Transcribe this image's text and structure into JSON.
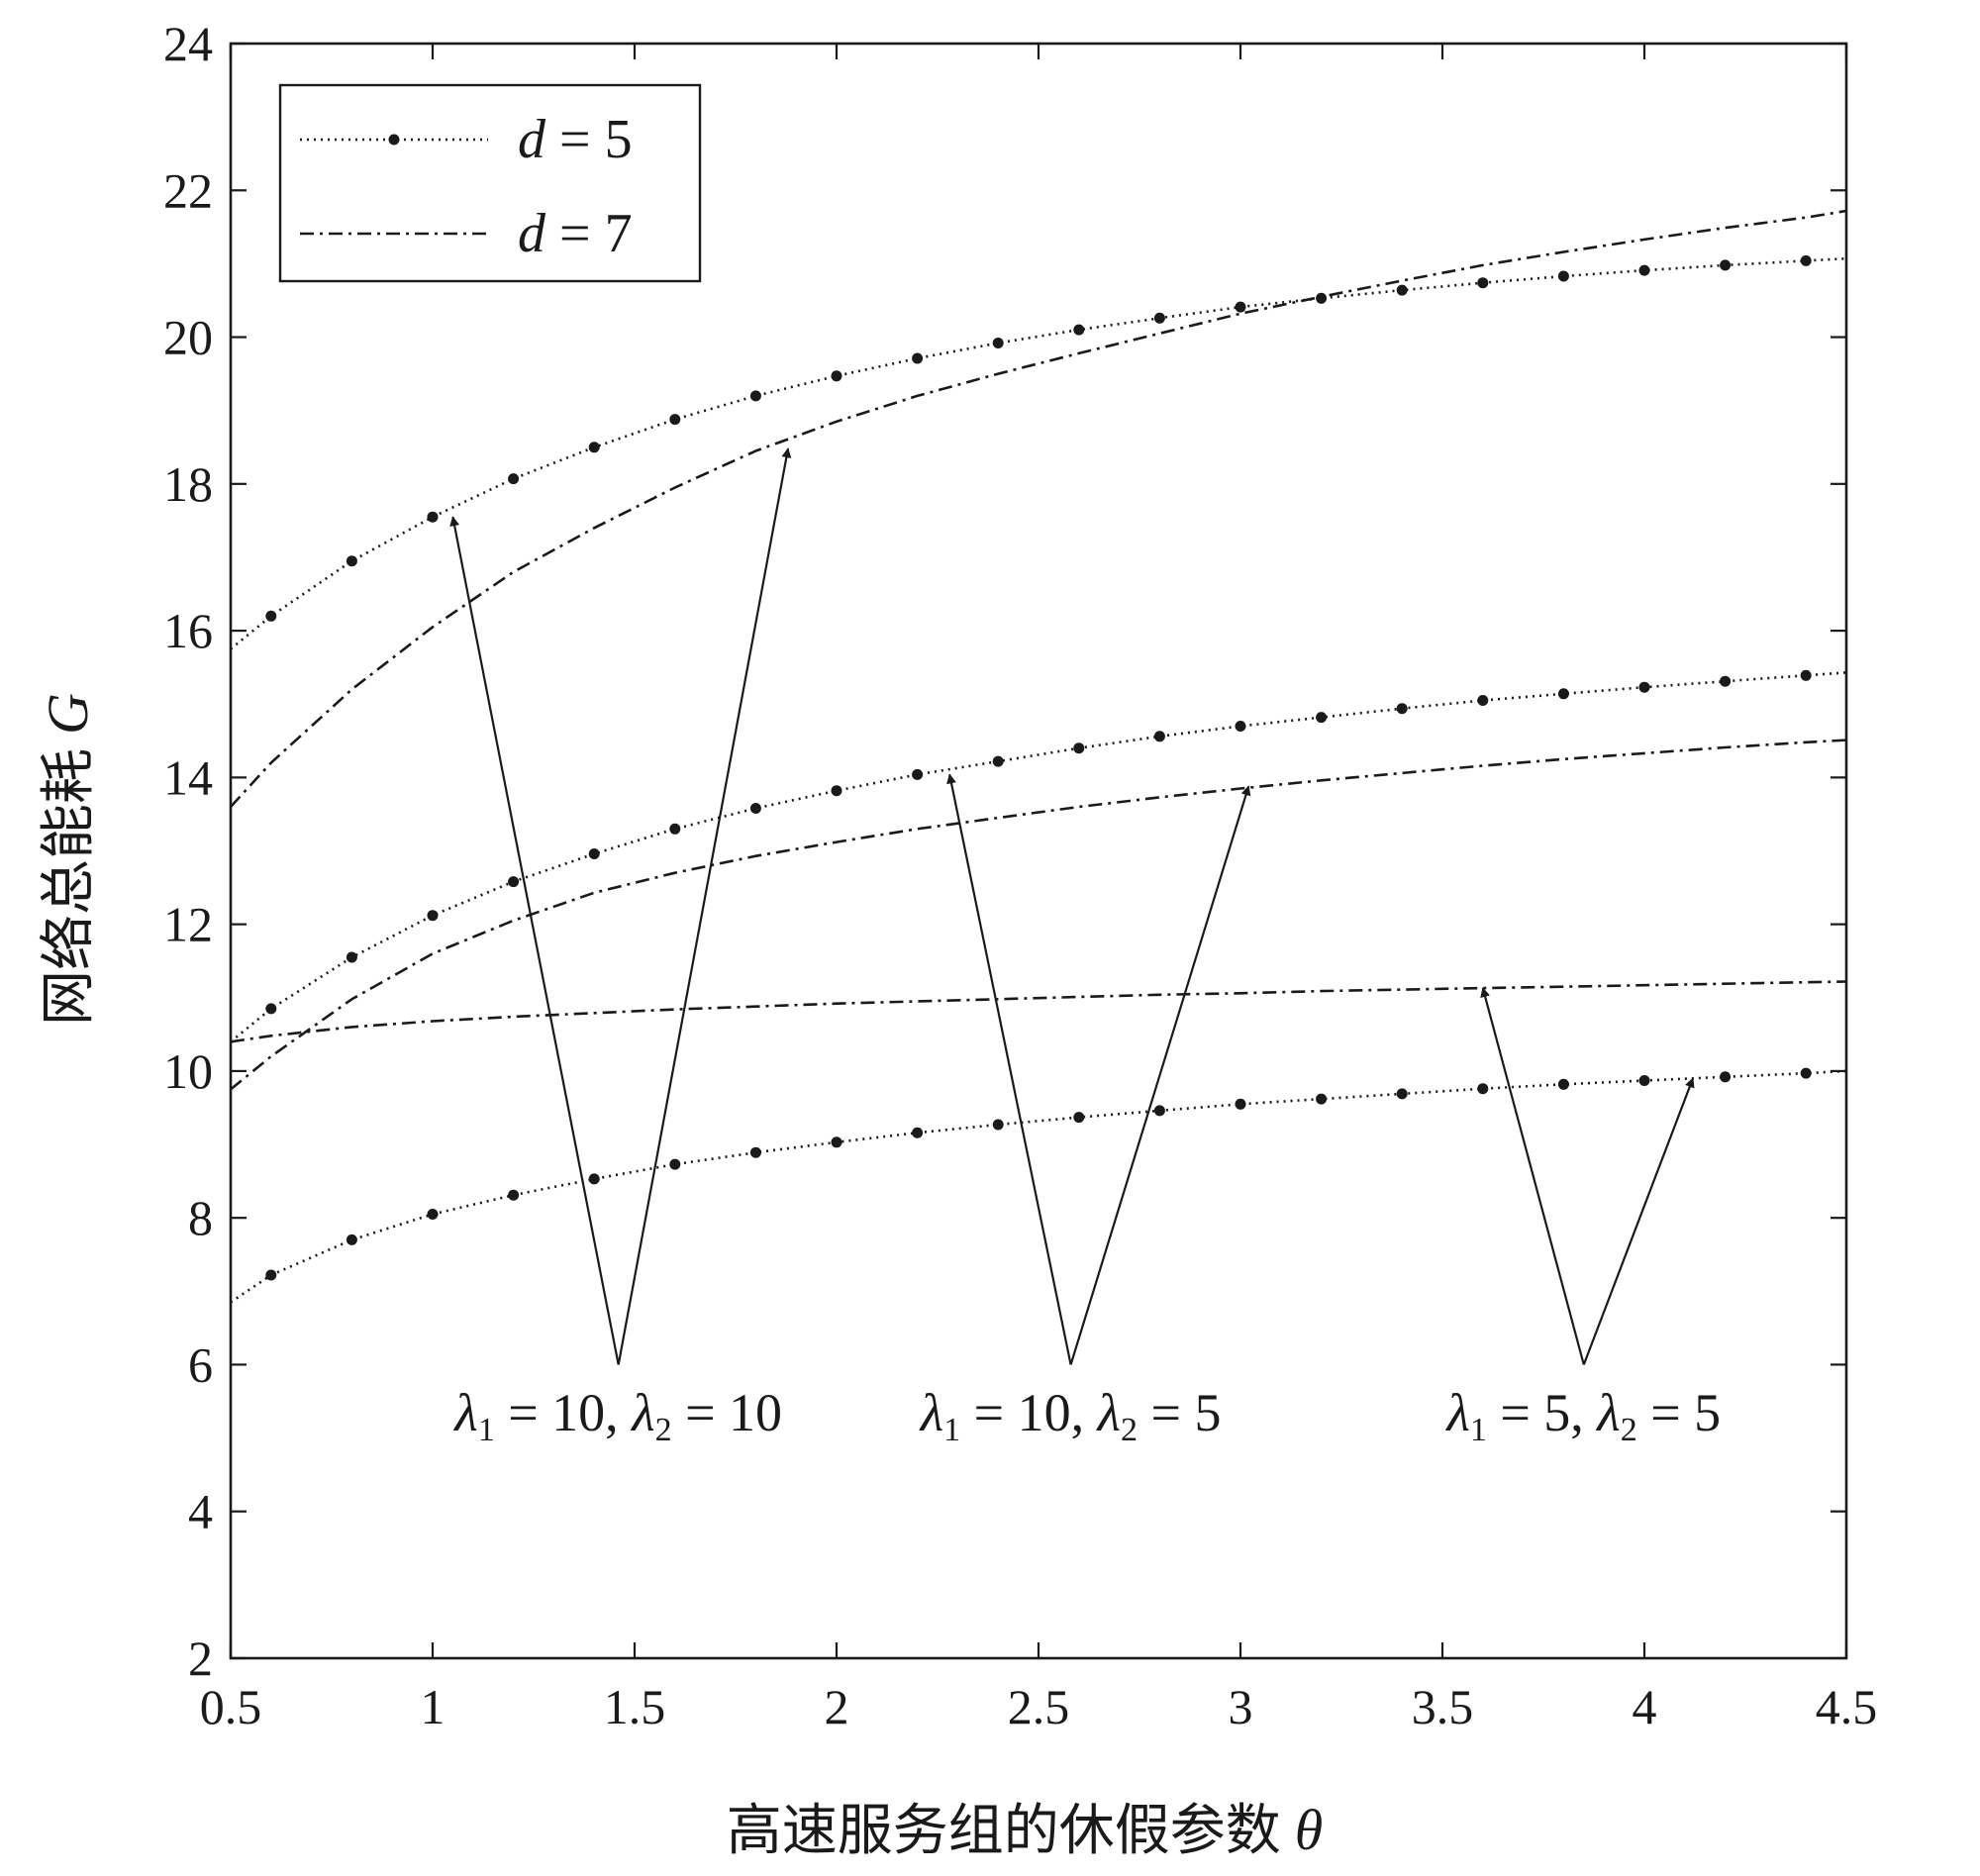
{
  "chart_data": {
    "type": "line",
    "xlabel": "高速服务组的休假参数",
    "xlabel_symbol": "θ",
    "ylabel": "网络总能耗",
    "ylabel_symbol": "G",
    "xlim": [
      0.5,
      4.5
    ],
    "ylim": [
      2,
      24
    ],
    "x_ticks": [
      "0.5",
      "1",
      "1.5",
      "2",
      "2.5",
      "3",
      "3.5",
      "4",
      "4.5"
    ],
    "y_ticks": [
      "2",
      "4",
      "6",
      "8",
      "10",
      "12",
      "14",
      "16",
      "18",
      "20",
      "22",
      "24"
    ],
    "grid": false,
    "legend_position": "top-left",
    "legend": [
      {
        "symbol": "d",
        "eq": " = ",
        "value": "5",
        "style": "dotted-marker"
      },
      {
        "symbol": "d",
        "eq": " = ",
        "value": "7",
        "style": "dash-dot"
      }
    ],
    "x": [
      0.5,
      0.6,
      0.8,
      1.0,
      1.2,
      1.4,
      1.6,
      1.8,
      2.0,
      2.2,
      2.4,
      2.6,
      2.8,
      3.0,
      3.2,
      3.4,
      3.6,
      3.8,
      4.0,
      4.2,
      4.4,
      4.5
    ],
    "series": [
      {
        "group": "λ1=10,λ2=10",
        "d": 5,
        "style": "dotted-marker",
        "values": [
          15.75,
          16.2,
          16.95,
          17.55,
          18.07,
          18.5,
          18.88,
          19.2,
          19.47,
          19.71,
          19.92,
          20.1,
          20.26,
          20.41,
          20.53,
          20.64,
          20.74,
          20.83,
          20.91,
          20.98,
          21.04,
          21.07
        ]
      },
      {
        "group": "λ1=10,λ2=10",
        "d": 7,
        "style": "dash-dot",
        "values": [
          13.6,
          14.2,
          15.2,
          16.05,
          16.8,
          17.4,
          17.95,
          18.45,
          18.85,
          19.2,
          19.5,
          19.78,
          20.05,
          20.32,
          20.55,
          20.77,
          20.98,
          21.16,
          21.33,
          21.49,
          21.63,
          21.72
        ]
      },
      {
        "group": "λ1=10,λ2=5",
        "d": 5,
        "style": "dotted-marker",
        "values": [
          10.4,
          10.85,
          11.55,
          12.12,
          12.58,
          12.96,
          13.3,
          13.58,
          13.82,
          14.04,
          14.22,
          14.4,
          14.56,
          14.7,
          14.82,
          14.94,
          15.05,
          15.14,
          15.23,
          15.31,
          15.39,
          15.43
        ]
      },
      {
        "group": "λ1=10,λ2=5",
        "d": 7,
        "style": "dash-dot",
        "values": [
          9.75,
          10.2,
          10.98,
          11.6,
          12.05,
          12.43,
          12.7,
          12.93,
          13.12,
          13.3,
          13.45,
          13.6,
          13.73,
          13.85,
          13.96,
          14.06,
          14.16,
          14.25,
          14.33,
          14.41,
          14.48,
          14.51
        ]
      },
      {
        "group": "λ1=5,λ2=5",
        "d": 5,
        "style": "dotted-marker",
        "values": [
          6.85,
          7.22,
          7.7,
          8.05,
          8.31,
          8.53,
          8.73,
          8.89,
          9.03,
          9.16,
          9.27,
          9.37,
          9.46,
          9.55,
          9.62,
          9.69,
          9.76,
          9.82,
          9.87,
          9.92,
          9.97,
          10.0
        ]
      },
      {
        "group": "λ1=5,λ2=5",
        "d": 7,
        "style": "dash-dot",
        "values": [
          10.4,
          10.48,
          10.6,
          10.68,
          10.74,
          10.79,
          10.84,
          10.88,
          10.92,
          10.95,
          10.98,
          11.01,
          11.04,
          11.06,
          11.09,
          11.11,
          11.13,
          11.15,
          11.17,
          11.19,
          11.21,
          11.22
        ]
      }
    ],
    "annotations": [
      {
        "label": [
          "λ",
          "1",
          " = 10, ",
          "λ",
          "2",
          " = 10"
        ]
      },
      {
        "label": [
          "λ",
          "1",
          " = 10, ",
          "λ",
          "2",
          " = 5"
        ]
      },
      {
        "label": [
          "λ",
          "1",
          " = 5, ",
          "λ",
          "2",
          " = 5"
        ]
      }
    ]
  }
}
